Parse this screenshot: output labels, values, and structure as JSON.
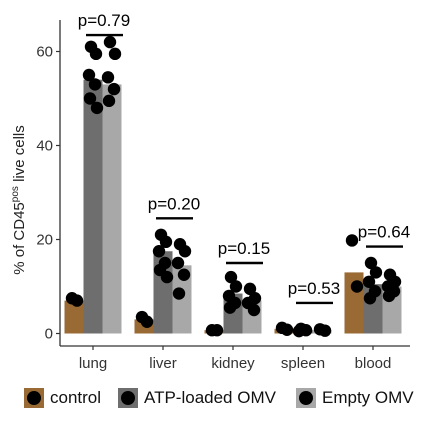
{
  "chart_data": {
    "type": "bar",
    "ylabel_pre": "% of CD45",
    "ylabel_sup": "pos",
    "ylabel_post": " live cells",
    "ylim": [
      -2,
      66
    ],
    "yticks": [
      0,
      20,
      40,
      60
    ],
    "grid": false,
    "legend_position": "bottom",
    "categories": [
      "lung",
      "liver",
      "kidney",
      "spleen",
      "blood"
    ],
    "series": [
      {
        "name": "control",
        "color": "#9a6a35",
        "values": [
          7,
          3,
          0.7,
          1,
          13
        ],
        "points": [
          [
            7.5,
            7
          ],
          [
            3.5,
            2.5
          ],
          [
            0.7,
            0.7
          ],
          [
            1.2,
            0.8
          ],
          [
            19.8,
            10
          ]
        ]
      },
      {
        "name": "ATP-loaded OMV",
        "color": "#6e6e6e",
        "values": [
          54,
          17.5,
          8.5,
          0.8,
          10.5
        ],
        "points": [
          [
            61,
            59.5,
            55,
            53,
            50,
            48
          ],
          [
            21,
            19.5,
            17.5,
            15,
            13.5,
            12
          ],
          [
            12,
            10,
            8,
            6.5,
            5.5
          ],
          [
            1,
            0.7,
            0.5
          ],
          [
            15,
            13,
            11,
            9,
            7.5
          ]
        ]
      },
      {
        "name": "Empty OMV",
        "color": "#a8a8a8",
        "values": [
          53,
          14.5,
          7,
          0.7,
          10
        ],
        "points": [
          [
            62,
            59.5,
            54.5,
            52,
            49.5
          ],
          [
            19,
            17.5,
            15,
            12.5,
            8.5
          ],
          [
            9.5,
            7.5,
            6.5,
            5
          ],
          [
            0.9,
            0.6
          ],
          [
            12.5,
            11,
            10,
            9,
            8
          ]
        ]
      }
    ],
    "pvalues": [
      {
        "category": "lung",
        "label": "p=0.79",
        "level": 63.5
      },
      {
        "category": "liver",
        "label": "p=0.20",
        "level": 24.5
      },
      {
        "category": "kidney",
        "label": "p=0.15",
        "level": 15
      },
      {
        "category": "spleen",
        "label": "p=0.53",
        "level": 6.5
      },
      {
        "category": "blood",
        "label": "p=0.64",
        "level": 18.5
      }
    ]
  }
}
